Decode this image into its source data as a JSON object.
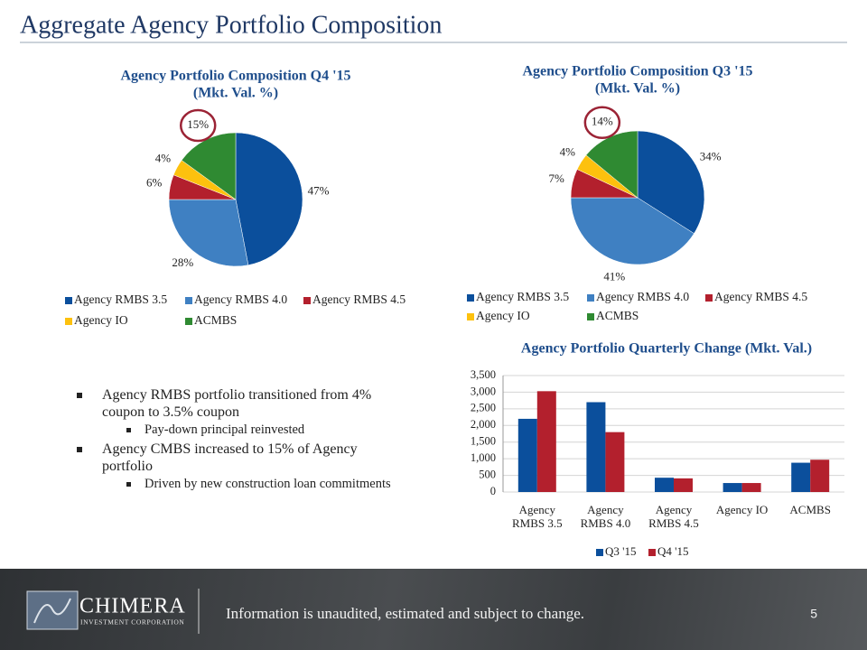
{
  "title": "Aggregate Agency Portfolio Composition",
  "bullets": [
    {
      "text": "Agency RMBS portfolio  transitioned from 4% coupon to 3.5% coupon",
      "sub": [
        "Pay-down principal reinvested"
      ]
    },
    {
      "text": "Agency CMBS increased to 15% of Agency portfolio",
      "sub": [
        "Driven by new construction loan commitments"
      ]
    }
  ],
  "footer": {
    "logo": "CHIMERA",
    "logo_sub": "INVESTMENT CORPORATION",
    "note": "Information is unaudited, estimated and subject to change.",
    "page": "5"
  },
  "chart_data": [
    {
      "type": "pie",
      "title": "Agency Portfolio Composition Q4 '15",
      "subtitle": "(Mkt. Val. %)",
      "categories": [
        "Agency RMBS 3.5",
        "Agency RMBS 4.0",
        "Agency RMBS 4.5",
        "Agency IO",
        "ACMBS"
      ],
      "values": [
        47,
        28,
        6,
        4,
        15
      ],
      "value_labels": [
        "47%",
        "28%",
        "6%",
        "4%",
        "15%"
      ],
      "colors": [
        "#0b4f9c",
        "#3f80c2",
        "#b3202d",
        "#fdc10e",
        "#2f8a32"
      ]
    },
    {
      "type": "pie",
      "title": "Agency Portfolio Composition Q3 '15",
      "subtitle": "(Mkt. Val. %)",
      "categories": [
        "Agency RMBS 3.5",
        "Agency RMBS 4.0",
        "Agency RMBS 4.5",
        "Agency IO",
        "ACMBS"
      ],
      "values": [
        34,
        41,
        7,
        4,
        14
      ],
      "value_labels": [
        "34%",
        "41%",
        "7%",
        "4%",
        "14%"
      ],
      "colors": [
        "#0b4f9c",
        "#3f80c2",
        "#b3202d",
        "#fdc10e",
        "#2f8a32"
      ]
    },
    {
      "type": "bar",
      "title": "Agency Portfolio Quarterly Change (Mkt. Val.)",
      "categories": [
        "Agency RMBS 3.5",
        "Agency RMBS 4.0",
        "Agency RMBS 4.5",
        "Agency IO",
        "ACMBS"
      ],
      "series": [
        {
          "name": "Q3 '15",
          "color": "#0b4f9c",
          "values": [
            2200,
            2700,
            430,
            270,
            880
          ]
        },
        {
          "name": "Q4 '15",
          "color": "#b3202d",
          "values": [
            3030,
            1800,
            410,
            270,
            970
          ]
        }
      ],
      "ylim": [
        0,
        3500
      ],
      "yticks": [
        0,
        500,
        {
          "value": 1000,
          "label": "1,000"
        },
        {
          "value": 1500,
          "label": "1,500"
        },
        {
          "value": 2000,
          "label": "2,000"
        },
        {
          "value": 2500,
          "label": "2,500"
        },
        {
          "value": 3000,
          "label": "3,000"
        },
        {
          "value": 3500,
          "label": "3,500"
        }
      ],
      "grid": true
    }
  ]
}
